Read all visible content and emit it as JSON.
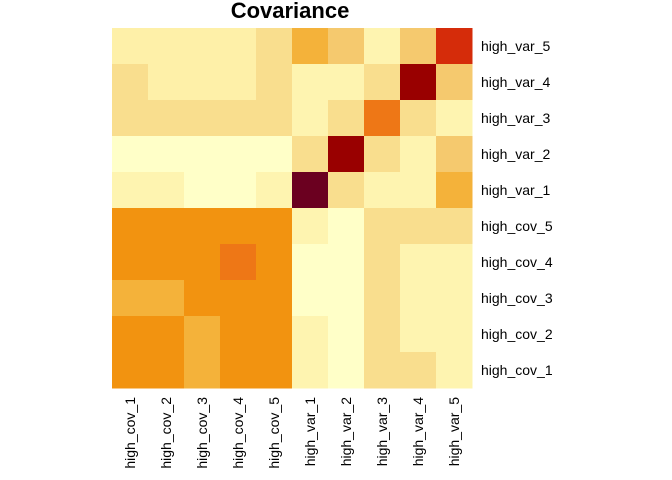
{
  "chart_data": {
    "type": "heatmap",
    "title": "Covariance",
    "xlabel": "",
    "ylabel": "",
    "legend": "none",
    "grid": false,
    "x_labels": [
      "high_cov_1",
      "high_cov_2",
      "high_cov_3",
      "high_cov_4",
      "high_cov_5",
      "high_var_1",
      "high_var_2",
      "high_var_3",
      "high_var_4",
      "high_var_5"
    ],
    "y_labels_top_to_bottom": [
      "high_var_5",
      "high_var_4",
      "high_var_3",
      "high_var_2",
      "high_var_1",
      "high_cov_5",
      "high_cov_4",
      "high_cov_3",
      "high_cov_2",
      "high_cov_1"
    ],
    "color_scale": {
      "name": "YlOrRd",
      "stops": [
        "#FFFFC8",
        "#FEF4B0",
        "#FEF0A8",
        "#F9DE8E",
        "#F5C96E",
        "#F4B23A",
        "#F29310",
        "#EE7716",
        "#D52C0A",
        "#990000",
        "#6B0020"
      ]
    },
    "matrix": [
      [
        2,
        2,
        2,
        2,
        3,
        5,
        4,
        1,
        4,
        8
      ],
      [
        3,
        2,
        2,
        2,
        3,
        1,
        1,
        3,
        9,
        4
      ],
      [
        3,
        3,
        3,
        3,
        3,
        1,
        3,
        7,
        3,
        1
      ],
      [
        0,
        0,
        0,
        0,
        0,
        3,
        9,
        3,
        1,
        4
      ],
      [
        1,
        1,
        0,
        0,
        1,
        10,
        3,
        1,
        1,
        5
      ],
      [
        6,
        6,
        6,
        6,
        6,
        1,
        0,
        3,
        3,
        3
      ],
      [
        6,
        6,
        6,
        7,
        6,
        0,
        0,
        3,
        1,
        1
      ],
      [
        5,
        5,
        6,
        6,
        6,
        0,
        0,
        3,
        1,
        1
      ],
      [
        6,
        6,
        5,
        6,
        6,
        1,
        0,
        3,
        1,
        1
      ],
      [
        6,
        6,
        5,
        6,
        6,
        1,
        0,
        3,
        3,
        1
      ]
    ]
  }
}
